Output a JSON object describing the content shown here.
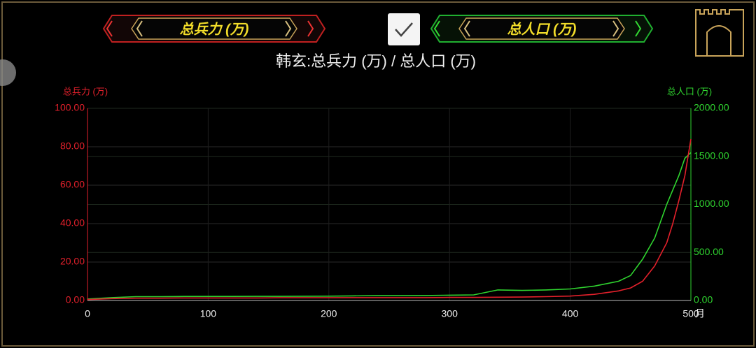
{
  "ui": {
    "left_selector": "总兵力 (万)",
    "right_selector": "总人口 (万)"
  },
  "chart_data": {
    "type": "line",
    "title": "韩玄:总兵力 (万)  / 总人口 (万)",
    "ylabel": "总兵力 (万)",
    "y2label": "总人口 (万)",
    "xlabel": "月",
    "x": [
      0,
      20,
      40,
      60,
      80,
      100,
      120,
      140,
      160,
      180,
      200,
      220,
      240,
      260,
      280,
      300,
      320,
      340,
      360,
      380,
      400,
      420,
      440,
      450,
      460,
      470,
      480,
      485,
      490,
      495,
      500
    ],
    "series": [
      {
        "name": "总兵力 (万)",
        "color": "#e3202b",
        "axis": "y",
        "values": [
          0.5,
          1,
          1.2,
          1.2,
          1.3,
          1.3,
          1.3,
          1.3,
          1.4,
          1.4,
          1.4,
          1.5,
          1.5,
          1.5,
          1.5,
          1.6,
          1.6,
          1.7,
          1.8,
          2,
          2.3,
          3.2,
          5,
          6.5,
          10,
          18,
          30,
          40,
          52,
          65,
          84
        ]
      },
      {
        "name": "总人口 (万)",
        "color": "#2fd42f",
        "axis": "y2",
        "values": [
          15,
          30,
          40,
          40,
          42,
          42,
          42,
          43,
          43,
          44,
          45,
          48,
          50,
          50,
          52,
          55,
          58,
          110,
          105,
          110,
          120,
          150,
          200,
          260,
          430,
          650,
          1000,
          1150,
          1300,
          1480,
          1540
        ]
      }
    ],
    "xlim": [
      0,
      500
    ],
    "xticks": [
      0,
      100,
      200,
      300,
      400,
      500
    ],
    "ylim": [
      0,
      100
    ],
    "yticks": [
      {
        "value": 0,
        "label": "0.00"
      },
      {
        "value": 20,
        "label": "20.00"
      },
      {
        "value": 40,
        "label": "40.00"
      },
      {
        "value": 60,
        "label": "60.00"
      },
      {
        "value": 80,
        "label": "80.00"
      },
      {
        "value": 100,
        "label": "100.00"
      }
    ],
    "y2lim": [
      0,
      2000
    ],
    "y2ticks": [
      {
        "value": 0,
        "label": "0.00"
      },
      {
        "value": 500,
        "label": "500.00"
      },
      {
        "value": 1000,
        "label": "1000.00"
      },
      {
        "value": 1500,
        "label": "1500.00"
      },
      {
        "value": 2000,
        "label": "2000.00"
      }
    ],
    "grid": true
  }
}
